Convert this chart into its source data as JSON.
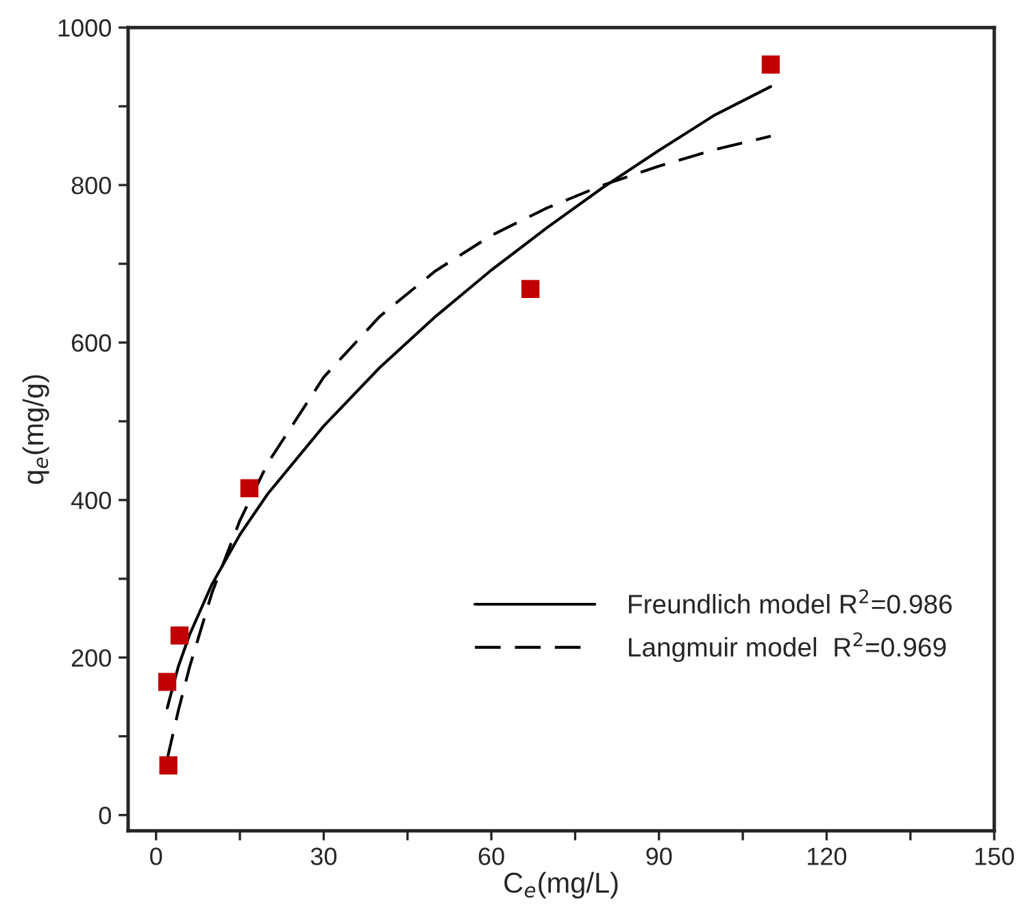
{
  "chart_data": {
    "type": "scatter",
    "xlabel": "C$_{e}$(mg/L)",
    "ylabel": "q$_{e}$(mg/g)",
    "xlim": [
      -5,
      150
    ],
    "ylim": [
      -20,
      1000
    ],
    "xticks": [
      0,
      {
        "value": 15,
        "label": null
      },
      30,
      {
        "value": 45,
        "label": null
      },
      60,
      {
        "value": 75,
        "label": null
      },
      90,
      {
        "value": 105,
        "label": null
      },
      120,
      {
        "value": 135,
        "label": null
      },
      150
    ],
    "yticks": [
      0,
      {
        "value": 100,
        "label": null
      },
      200,
      {
        "value": 300,
        "label": null
      },
      400,
      {
        "value": 500,
        "label": null
      },
      600,
      {
        "value": 700,
        "label": null
      },
      800,
      {
        "value": 900,
        "label": null
      },
      1000
    ],
    "grid": false,
    "legend": "lower right",
    "series": [
      {
        "color": "#c00000",
        "marker": "square",
        "x": [
          2.2,
          2.0,
          4.2,
          16.7,
          67,
          110
        ],
        "values": [
          63,
          169,
          228,
          415,
          668,
          953
        ]
      },
      {
        "type": "line",
        "name": "Freundlich model R$^{2}$=0.986",
        "color": "#000000",
        "line_style": "solid",
        "marker": "none",
        "x": [
          2,
          4,
          6,
          10,
          15,
          20,
          30,
          40,
          50,
          60,
          70,
          80,
          90,
          100,
          110
        ],
        "values": [
          136,
          189,
          229,
          293,
          356,
          408,
          494,
          568,
          633,
          692,
          746,
          797,
          844,
          889,
          925
        ]
      },
      {
        "type": "line",
        "name": "Langmuir model  R$^{2}$=0.969",
        "color": "#000000",
        "line_style": "dashed",
        "marker": "none",
        "x": [
          2,
          4,
          6,
          10,
          15,
          20,
          30,
          40,
          50,
          60,
          70,
          80,
          90,
          100,
          110
        ],
        "values": [
          71,
          133,
          188,
          282,
          374,
          447,
          556,
          633,
          691,
          736,
          771,
          800,
          824,
          845,
          862
        ]
      }
    ]
  }
}
